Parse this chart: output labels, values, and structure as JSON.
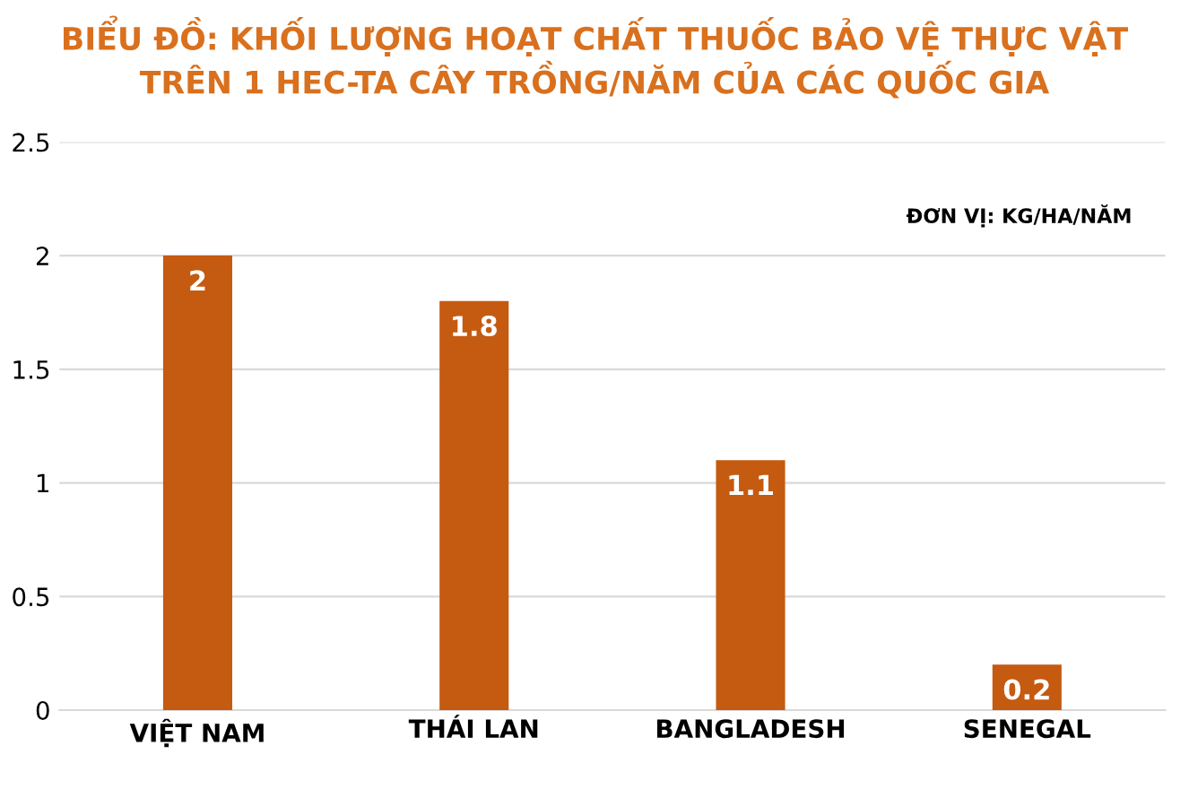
{
  "chart_data": {
    "type": "bar",
    "title": "BIỂU ĐỒ: KHỐI LƯỢNG HOẠT CHẤT THUỐC BẢO VỆ THỰC VẬT\nTRÊN 1 HEC-TA CÂY TRỒNG/NĂM CỦA CÁC QUỐC GIA",
    "categories": [
      "VIỆT NAM",
      "THÁI LAN",
      "BANGLADESH",
      "SENEGAL"
    ],
    "values": [
      2,
      1.8,
      1.1,
      0.2
    ],
    "color": "#c55a11",
    "ylim": [
      0,
      2.5
    ],
    "yticks": [
      0,
      0.5,
      1,
      1.5,
      2,
      2.5
    ],
    "grid": "y",
    "data_labels": true,
    "annotations": [
      "ĐƠN VỊ: KG/HA/NĂM"
    ]
  }
}
